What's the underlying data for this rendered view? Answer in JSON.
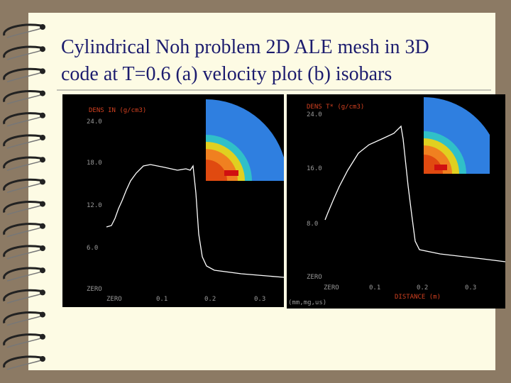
{
  "title_lines": [
    "Cylindrical Noh problem 2D ALE mesh in 3D",
    "code at T=0.6 (a) velocity plot (b) isobars"
  ],
  "panels": [
    {
      "ylabel": "DENS IN (g/cm3)",
      "yticks": [
        "24.0",
        "18.0",
        "12.0",
        "6.0",
        "ZERO"
      ],
      "xticks": [
        "ZERO",
        "0.1",
        "0.2",
        "0.3"
      ]
    },
    {
      "ylabel": "DENS T* (g/cm3)",
      "yticks": [
        "24.0",
        "16.0",
        "8.0",
        "ZERO"
      ],
      "xticks": [
        "ZERO",
        "0.1",
        "0.2",
        "0.3"
      ],
      "xlabel": "DISTANCE (m)",
      "units": "(mm,mg,us)"
    }
  ]
}
